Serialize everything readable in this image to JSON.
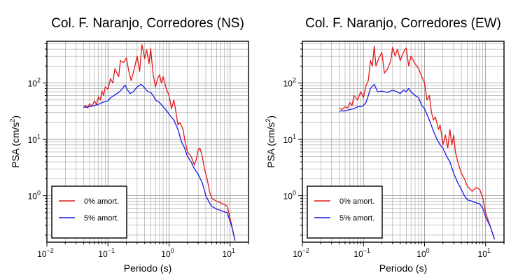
{
  "chart_data": [
    {
      "type": "line",
      "title": "Col. F. Naranjo, Corredores (NS)",
      "xlabel": "Periodo (s)",
      "ylabel": "PSA (cm/s",
      "ylabel_sup": "2",
      "ylabel_end": ")",
      "x_scale": "log",
      "y_scale": "log",
      "xlim": [
        0.01,
        20
      ],
      "ylim": [
        0.15,
        550
      ],
      "grid": true,
      "legend_position": "bottom-left",
      "x_ticks": [
        {
          "base": "10",
          "exp": "−2"
        },
        {
          "base": "10",
          "exp": "−1"
        },
        {
          "base": "10",
          "exp": "0"
        },
        {
          "base": "10",
          "exp": "1"
        }
      ],
      "y_ticks": [
        {
          "base": "10",
          "exp": "0"
        },
        {
          "base": "10",
          "exp": "1"
        },
        {
          "base": "10",
          "exp": "2"
        }
      ],
      "series": [
        {
          "name": "0% amort.",
          "color": "#e31a1c",
          "points": [
            [
              0.04,
              37
            ],
            [
              0.043,
              40
            ],
            [
              0.046,
              36
            ],
            [
              0.05,
              43
            ],
            [
              0.055,
              39
            ],
            [
              0.06,
              48
            ],
            [
              0.065,
              42
            ],
            [
              0.07,
              57
            ],
            [
              0.075,
              50
            ],
            [
              0.08,
              72
            ],
            [
              0.085,
              60
            ],
            [
              0.09,
              85
            ],
            [
              0.1,
              78
            ],
            [
              0.11,
              120
            ],
            [
              0.12,
              100
            ],
            [
              0.13,
              180
            ],
            [
              0.14,
              150
            ],
            [
              0.15,
              130
            ],
            [
              0.16,
              250
            ],
            [
              0.18,
              230
            ],
            [
              0.2,
              280
            ],
            [
              0.22,
              160
            ],
            [
              0.24,
              110
            ],
            [
              0.27,
              180
            ],
            [
              0.3,
              300
            ],
            [
              0.33,
              160
            ],
            [
              0.36,
              480
            ],
            [
              0.4,
              270
            ],
            [
              0.43,
              390
            ],
            [
              0.47,
              220
            ],
            [
              0.5,
              410
            ],
            [
              0.55,
              140
            ],
            [
              0.6,
              85
            ],
            [
              0.65,
              120
            ],
            [
              0.7,
              140
            ],
            [
              0.75,
              100
            ],
            [
              0.8,
              130
            ],
            [
              0.9,
              80
            ],
            [
              1.0,
              60
            ],
            [
              1.1,
              35
            ],
            [
              1.2,
              50
            ],
            [
              1.3,
              30
            ],
            [
              1.4,
              18
            ],
            [
              1.5,
              20
            ],
            [
              1.7,
              15
            ],
            [
              1.8,
              10
            ],
            [
              2.0,
              6
            ],
            [
              2.3,
              5
            ],
            [
              2.6,
              3.5
            ],
            [
              2.8,
              4.5
            ],
            [
              3.0,
              6.5
            ],
            [
              3.2,
              7
            ],
            [
              3.5,
              5
            ],
            [
              3.8,
              3
            ],
            [
              4.2,
              2
            ],
            [
              4.6,
              1.2
            ],
            [
              5.0,
              0.9
            ],
            [
              6.0,
              0.8
            ],
            [
              7.0,
              0.75
            ],
            [
              8.0,
              0.7
            ],
            [
              9.0,
              0.65
            ],
            [
              10.0,
              0.4
            ],
            [
              11.0,
              0.25
            ],
            [
              12.0,
              0.16
            ]
          ]
        },
        {
          "name": "5% amort.",
          "color": "#1a1ae6",
          "points": [
            [
              0.04,
              37
            ],
            [
              0.05,
              38
            ],
            [
              0.06,
              40
            ],
            [
              0.07,
              42
            ],
            [
              0.08,
              45
            ],
            [
              0.09,
              47
            ],
            [
              0.1,
              48
            ],
            [
              0.11,
              55
            ],
            [
              0.12,
              58
            ],
            [
              0.13,
              62
            ],
            [
              0.15,
              68
            ],
            [
              0.17,
              78
            ],
            [
              0.19,
              92
            ],
            [
              0.21,
              75
            ],
            [
              0.23,
              65
            ],
            [
              0.26,
              70
            ],
            [
              0.3,
              85
            ],
            [
              0.35,
              95
            ],
            [
              0.4,
              82
            ],
            [
              0.45,
              70
            ],
            [
              0.5,
              68
            ],
            [
              0.55,
              60
            ],
            [
              0.6,
              50
            ],
            [
              0.7,
              45
            ],
            [
              0.8,
              38
            ],
            [
              0.9,
              33
            ],
            [
              1.0,
              28
            ],
            [
              1.2,
              22
            ],
            [
              1.4,
              15
            ],
            [
              1.6,
              9
            ],
            [
              1.8,
              7
            ],
            [
              2.0,
              5
            ],
            [
              2.3,
              4
            ],
            [
              2.6,
              3
            ],
            [
              3.0,
              2.4
            ],
            [
              3.5,
              1.7
            ],
            [
              4.0,
              1.0
            ],
            [
              4.5,
              0.78
            ],
            [
              5.0,
              0.65
            ],
            [
              6.0,
              0.58
            ],
            [
              7.0,
              0.55
            ],
            [
              8.0,
              0.52
            ],
            [
              9.0,
              0.5
            ],
            [
              10.0,
              0.35
            ],
            [
              11.0,
              0.25
            ],
            [
              12.0,
              0.16
            ]
          ]
        }
      ]
    },
    {
      "type": "line",
      "title": "Col. F. Naranjo, Corredores (EW)",
      "xlabel": "Periodo (s)",
      "ylabel": "PSA (cm/s",
      "ylabel_sup": "2",
      "ylabel_end": ")",
      "x_scale": "log",
      "y_scale": "log",
      "xlim": [
        0.01,
        20
      ],
      "ylim": [
        0.15,
        550
      ],
      "grid": true,
      "legend_position": "bottom-left",
      "x_ticks": [
        {
          "base": "10",
          "exp": "−2"
        },
        {
          "base": "10",
          "exp": "−1"
        },
        {
          "base": "10",
          "exp": "0"
        },
        {
          "base": "10",
          "exp": "1"
        }
      ],
      "y_ticks": [
        {
          "base": "10",
          "exp": "0"
        },
        {
          "base": "10",
          "exp": "1"
        },
        {
          "base": "10",
          "exp": "2"
        }
      ],
      "series": [
        {
          "name": "0% amort.",
          "color": "#e31a1c",
          "points": [
            [
              0.04,
              36
            ],
            [
              0.045,
              34
            ],
            [
              0.05,
              38
            ],
            [
              0.055,
              36
            ],
            [
              0.06,
              45
            ],
            [
              0.065,
              40
            ],
            [
              0.07,
              60
            ],
            [
              0.08,
              50
            ],
            [
              0.09,
              70
            ],
            [
              0.1,
              55
            ],
            [
              0.11,
              90
            ],
            [
              0.12,
              110
            ],
            [
              0.13,
              250
            ],
            [
              0.14,
              200
            ],
            [
              0.15,
              450
            ],
            [
              0.16,
              200
            ],
            [
              0.18,
              280
            ],
            [
              0.2,
              350
            ],
            [
              0.22,
              150
            ],
            [
              0.25,
              180
            ],
            [
              0.28,
              250
            ],
            [
              0.3,
              430
            ],
            [
              0.33,
              300
            ],
            [
              0.36,
              400
            ],
            [
              0.4,
              250
            ],
            [
              0.45,
              350
            ],
            [
              0.5,
              420
            ],
            [
              0.55,
              200
            ],
            [
              0.6,
              300
            ],
            [
              0.7,
              220
            ],
            [
              0.8,
              180
            ],
            [
              0.9,
              130
            ],
            [
              1.0,
              100
            ],
            [
              1.1,
              50
            ],
            [
              1.2,
              60
            ],
            [
              1.3,
              30
            ],
            [
              1.4,
              22
            ],
            [
              1.5,
              25
            ],
            [
              1.7,
              15
            ],
            [
              1.8,
              18
            ],
            [
              2.0,
              8
            ],
            [
              2.2,
              12
            ],
            [
              2.4,
              7
            ],
            [
              2.6,
              15
            ],
            [
              2.8,
              8
            ],
            [
              3.0,
              12
            ],
            [
              3.2,
              6
            ],
            [
              3.5,
              4
            ],
            [
              4.0,
              2.5
            ],
            [
              4.5,
              2
            ],
            [
              5.0,
              1.5
            ],
            [
              6.0,
              1.2
            ],
            [
              7.0,
              1.4
            ],
            [
              8.0,
              1.3
            ],
            [
              9.0,
              0.9
            ],
            [
              10.0,
              0.5
            ],
            [
              12.0,
              0.28
            ],
            [
              14.0,
              0.17
            ]
          ]
        },
        {
          "name": "5% amort.",
          "color": "#1a1ae6",
          "points": [
            [
              0.04,
              32
            ],
            [
              0.05,
              32
            ],
            [
              0.06,
              34
            ],
            [
              0.07,
              35
            ],
            [
              0.08,
              38
            ],
            [
              0.09,
              38
            ],
            [
              0.1,
              40
            ],
            [
              0.11,
              45
            ],
            [
              0.12,
              60
            ],
            [
              0.13,
              80
            ],
            [
              0.15,
              95
            ],
            [
              0.17,
              70
            ],
            [
              0.2,
              72
            ],
            [
              0.25,
              68
            ],
            [
              0.3,
              75
            ],
            [
              0.35,
              70
            ],
            [
              0.4,
              65
            ],
            [
              0.45,
              75
            ],
            [
              0.5,
              70
            ],
            [
              0.55,
              80
            ],
            [
              0.6,
              70
            ],
            [
              0.7,
              60
            ],
            [
              0.8,
              55
            ],
            [
              0.9,
              40
            ],
            [
              1.0,
              35
            ],
            [
              1.2,
              22
            ],
            [
              1.4,
              14
            ],
            [
              1.6,
              10
            ],
            [
              1.8,
              8
            ],
            [
              2.0,
              7
            ],
            [
              2.3,
              5
            ],
            [
              2.6,
              4
            ],
            [
              3.0,
              2.5
            ],
            [
              3.5,
              1.7
            ],
            [
              4.0,
              1.3
            ],
            [
              4.5,
              1.0
            ],
            [
              5.0,
              0.85
            ],
            [
              6.0,
              0.8
            ],
            [
              7.0,
              0.75
            ],
            [
              8.0,
              0.72
            ],
            [
              9.0,
              0.6
            ],
            [
              10.0,
              0.42
            ],
            [
              12.0,
              0.28
            ],
            [
              14.0,
              0.17
            ]
          ]
        }
      ]
    }
  ]
}
